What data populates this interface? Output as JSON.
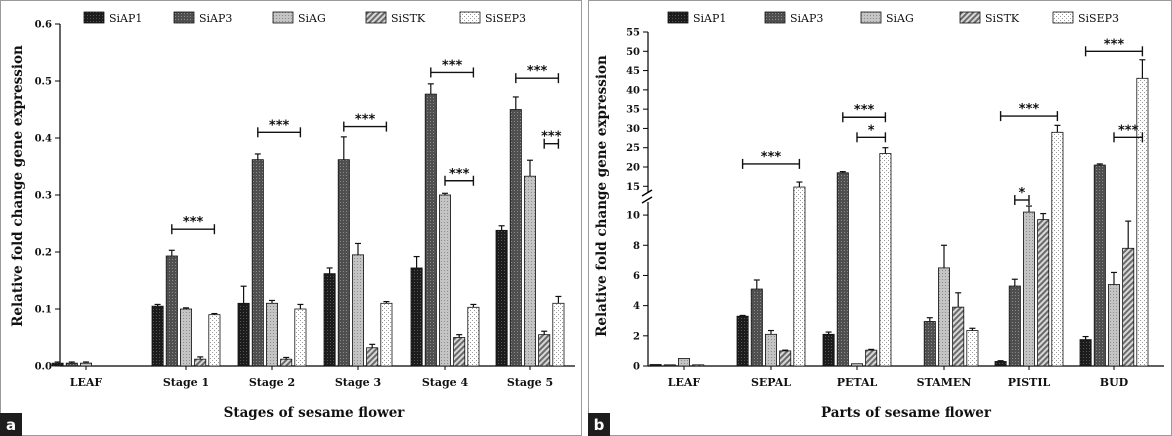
{
  "chart_data": [
    {
      "panel_label": "a",
      "type": "bar",
      "title": "",
      "xlabel": "Stages of sesame flower",
      "ylabel": "Relative fold change gene expression",
      "ylim": [
        0,
        0.6
      ],
      "yticks": [
        "0.0",
        "0.1",
        "0.2",
        "0.3",
        "0.4",
        "0.5",
        "0.6"
      ],
      "categories": [
        "LEAF",
        "Stage 1",
        "Stage 2",
        "Stage 3",
        "Stage 4",
        "Stage 5"
      ],
      "series": [
        {
          "name": "SiAP1",
          "values": [
            0.005,
            0.105,
            0.11,
            0.162,
            0.172,
            0.238
          ],
          "errors": [
            0.002,
            0.003,
            0.03,
            0.01,
            0.02,
            0.008
          ]
        },
        {
          "name": "SiAP3",
          "values": [
            0.005,
            0.193,
            0.362,
            0.362,
            0.477,
            0.45
          ],
          "errors": [
            0.002,
            0.01,
            0.01,
            0.04,
            0.018,
            0.022
          ]
        },
        {
          "name": "SiAG",
          "values": [
            0.005,
            0.1,
            0.11,
            0.195,
            0.3,
            0.333
          ],
          "errors": [
            0.002,
            0.002,
            0.005,
            0.02,
            0.003,
            0.028
          ]
        },
        {
          "name": "SiSTK",
          "values": [
            0,
            0.012,
            0.012,
            0.032,
            0.05,
            0.055
          ],
          "errors": [
            0,
            0.004,
            0.003,
            0.006,
            0.005,
            0.006
          ]
        },
        {
          "name": "SiSEP3",
          "values": [
            0,
            0.09,
            0.1,
            0.11,
            0.103,
            0.11
          ],
          "errors": [
            0,
            0.002,
            0.008,
            0.003,
            0.005,
            0.012
          ]
        }
      ],
      "significance": [
        {
          "label": "***",
          "category": 1,
          "from_series": 1,
          "to_series": 4,
          "y": 0.24
        },
        {
          "label": "***",
          "category": 2,
          "from_series": 1,
          "to_series": 4,
          "y": 0.41
        },
        {
          "label": "***",
          "category": 3,
          "from_series": 1,
          "to_series": 4,
          "y": 0.42
        },
        {
          "label": "***",
          "category": 4,
          "from_series": 1,
          "to_series": 4,
          "y": 0.515
        },
        {
          "label": "***",
          "category": 4,
          "from_series": 2,
          "to_series": 4,
          "y": 0.325
        },
        {
          "label": "***",
          "category": 5,
          "from_series": 1,
          "to_series": 4,
          "y": 0.505
        },
        {
          "label": "***",
          "category": 5,
          "from_series": 3,
          "to_series": 4,
          "y": 0.39
        }
      ]
    },
    {
      "panel_label": "b",
      "type": "bar",
      "title": "",
      "xlabel": "Parts of sesame flower",
      "ylabel": "Relative fold change gene expression",
      "axis_break": [
        11,
        13
      ],
      "ylim": [
        0,
        55
      ],
      "yticks_lower": [
        "0",
        "2",
        "4",
        "6",
        "8",
        "10"
      ],
      "yticks_upper": [
        "15",
        "20",
        "25",
        "30",
        "35",
        "40",
        "45",
        "50",
        "55"
      ],
      "categories": [
        "LEAF",
        "SEPAL",
        "PETAL",
        "STAMEN",
        "PISTIL",
        "BUD"
      ],
      "series": [
        {
          "name": "SiAP1",
          "values": [
            0.1,
            3.3,
            2.1,
            0,
            0.3,
            1.75
          ],
          "errors": [
            0,
            0.05,
            0.15,
            0,
            0.05,
            0.2
          ]
        },
        {
          "name": "SiAP3",
          "values": [
            0.05,
            5.1,
            18.5,
            2.95,
            5.3,
            20.5
          ],
          "errors": [
            0,
            0.6,
            0.3,
            0.25,
            0.45,
            0.3
          ]
        },
        {
          "name": "SiAG",
          "values": [
            0.5,
            2.1,
            0.15,
            6.5,
            10.2,
            5.4
          ],
          "errors": [
            0,
            0.25,
            0,
            1.5,
            0.4,
            0.8
          ]
        },
        {
          "name": "SiSTK",
          "values": [
            0.05,
            1.0,
            1.05,
            3.9,
            9.7,
            7.8
          ],
          "errors": [
            0,
            0.05,
            0.05,
            0.95,
            0.4,
            1.8
          ]
        },
        {
          "name": "SiSEP3",
          "values": [
            0,
            14.8,
            23.5,
            2.35,
            29.0,
            43.0
          ],
          "errors": [
            0,
            1.3,
            1.5,
            0.15,
            1.8,
            4.8
          ]
        }
      ],
      "significance": [
        {
          "label": "***",
          "category": 1,
          "from_series": 0,
          "to_series": 4,
          "y": 20.8
        },
        {
          "label": "***",
          "category": 2,
          "from_series": 1,
          "to_series": 4,
          "y": 32.9
        },
        {
          "label": "*",
          "category": 2,
          "from_series": 2,
          "to_series": 4,
          "y": 27.7
        },
        {
          "label": "***",
          "category": 4,
          "from_series": 0,
          "to_series": 4,
          "y": 33.2
        },
        {
          "label": "*",
          "category": 4,
          "from_series": 1,
          "to_series": 2,
          "y": 11.0
        },
        {
          "label": "***",
          "category": 5,
          "from_series": 0,
          "to_series": 4,
          "y": 50.0
        },
        {
          "label": "***",
          "category": 5,
          "from_series": 2,
          "to_series": 4,
          "y": 27.7
        }
      ]
    }
  ],
  "legend": [
    "SiAP1",
    "SiAP3",
    "SiAG",
    "SiSTK",
    "SiSEP3"
  ],
  "colors": {
    "SiAP1": "#1c1c1c",
    "SiAP3": "#5a5a5a",
    "SiAG": "#b9b9b9",
    "SiSTK": "#8f8f8f",
    "SiSEP3": "#f4f4f4",
    "panel_tag": "#1d1d1d"
  }
}
